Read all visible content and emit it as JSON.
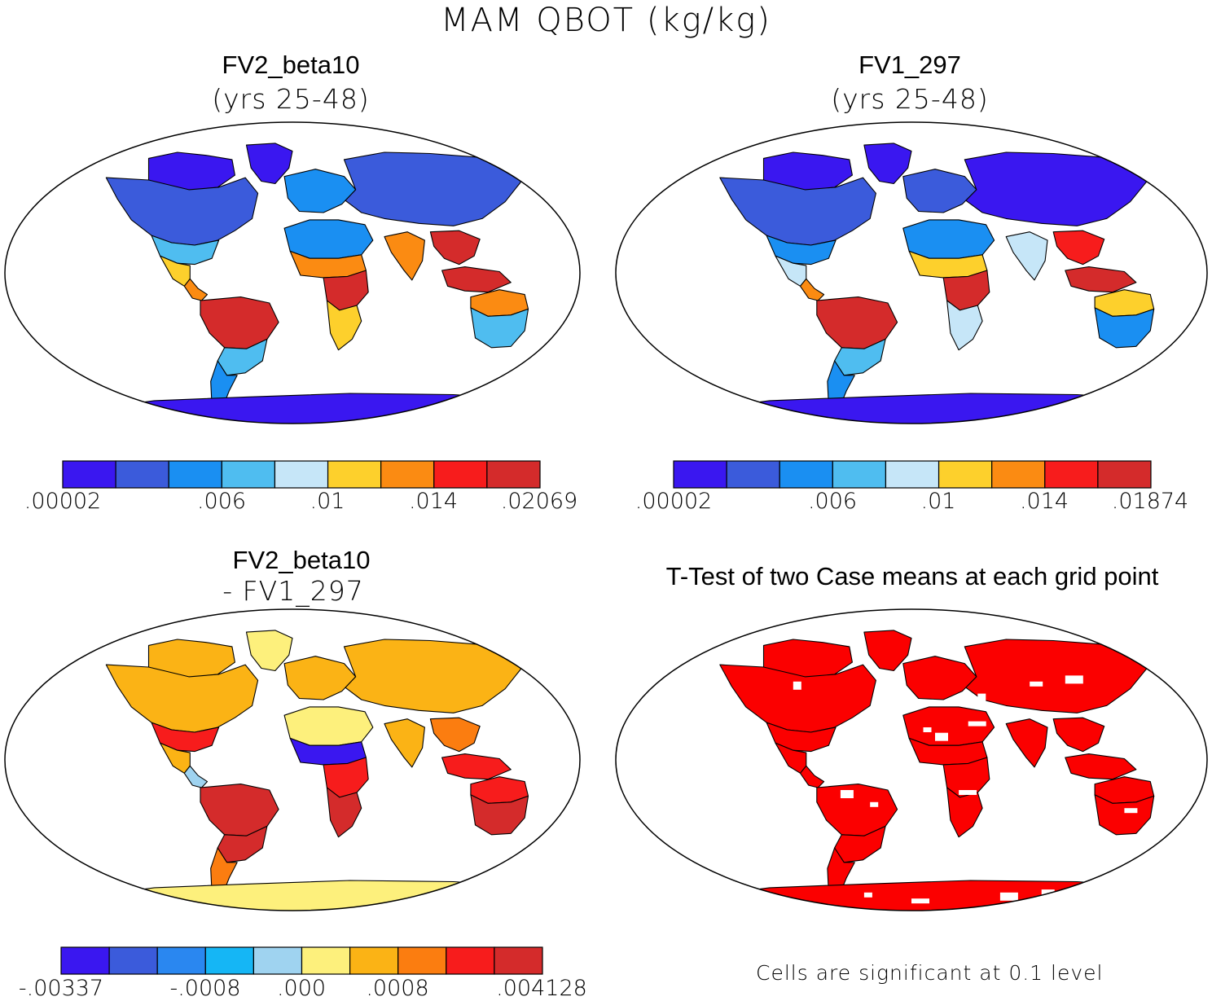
{
  "figure": {
    "title": "MAM QBOT (kg/kg)"
  },
  "chart_data": [
    {
      "type": "heatmap",
      "title": "FV2_beta10",
      "subtitle": "(yrs 25-48)",
      "projection": "robinson",
      "colorbar": {
        "colors": [
          "#3a17f0",
          "#3b5bdb",
          "#1a8ff2",
          "#4fbdf0",
          "#c6e6f8",
          "#fdd02c",
          "#fb8b12",
          "#f71c1c",
          "#d42b2b"
        ],
        "tick_labels": [
          ".00002",
          ".006",
          ".01",
          ".014",
          ".02069"
        ],
        "tick_boundary_index": [
          0,
          3,
          5,
          7,
          9
        ]
      },
      "regions": [
        {
          "name": "Arctic Canada",
          "level": 0
        },
        {
          "name": "North America",
          "level": 1
        },
        {
          "name": "Southern US",
          "level": 3
        },
        {
          "name": "Mexico",
          "level": 5
        },
        {
          "name": "Central America",
          "level": 6
        },
        {
          "name": "Amazon",
          "level": 8
        },
        {
          "name": "Southern South America",
          "level": 3
        },
        {
          "name": "Patagonia",
          "level": 2
        },
        {
          "name": "Greenland",
          "level": 0
        },
        {
          "name": "Europe",
          "level": 2
        },
        {
          "name": "Siberia",
          "level": 1
        },
        {
          "name": "Sahara",
          "level": 2
        },
        {
          "name": "Sahel",
          "level": 6
        },
        {
          "name": "Central Africa",
          "level": 8
        },
        {
          "name": "Southern Africa",
          "level": 5
        },
        {
          "name": "India",
          "level": 6
        },
        {
          "name": "Southeast Asia",
          "level": 8
        },
        {
          "name": "Maritime Continent",
          "level": 8
        },
        {
          "name": "Interior Australia",
          "level": 3
        },
        {
          "name": "North Australia",
          "level": 6
        },
        {
          "name": "Antarctica",
          "level": 0
        }
      ]
    },
    {
      "type": "heatmap",
      "title": "FV1_297",
      "subtitle": "(yrs 25-48)",
      "projection": "robinson",
      "colorbar": {
        "colors": [
          "#3a17f0",
          "#3b5bdb",
          "#1a8ff2",
          "#4fbdf0",
          "#c6e6f8",
          "#fdd02c",
          "#fb8b12",
          "#f71c1c",
          "#d42b2b"
        ],
        "tick_labels": [
          ".00002",
          ".006",
          ".01",
          ".014",
          ".01874"
        ],
        "tick_boundary_index": [
          0,
          3,
          5,
          7,
          9
        ]
      },
      "regions": [
        {
          "name": "Arctic Canada",
          "level": 0
        },
        {
          "name": "North America",
          "level": 1
        },
        {
          "name": "Southern US",
          "level": 2
        },
        {
          "name": "Mexico",
          "level": 4
        },
        {
          "name": "Central America",
          "level": 6
        },
        {
          "name": "Amazon",
          "level": 8
        },
        {
          "name": "Southern South America",
          "level": 3
        },
        {
          "name": "Patagonia",
          "level": 2
        },
        {
          "name": "Greenland",
          "level": 0
        },
        {
          "name": "Europe",
          "level": 1
        },
        {
          "name": "Siberia",
          "level": 0
        },
        {
          "name": "Sahara",
          "level": 2
        },
        {
          "name": "Sahel",
          "level": 5
        },
        {
          "name": "Central Africa",
          "level": 8
        },
        {
          "name": "Southern Africa",
          "level": 4
        },
        {
          "name": "India",
          "level": 4
        },
        {
          "name": "Southeast Asia",
          "level": 7
        },
        {
          "name": "Maritime Continent",
          "level": 8
        },
        {
          "name": "Interior Australia",
          "level": 2
        },
        {
          "name": "North Australia",
          "level": 5
        },
        {
          "name": "Antarctica",
          "level": 0
        }
      ]
    },
    {
      "type": "heatmap",
      "title": "FV2_beta10",
      "subtitle": "- FV1_297",
      "projection": "robinson",
      "colorbar": {
        "colors": [
          "#3a17f0",
          "#3b5bdb",
          "#2a87f0",
          "#15b6f5",
          "#9fd3f0",
          "#fdf07c",
          "#fbb315",
          "#fb7d10",
          "#f71c1c",
          "#d42b2b"
        ],
        "tick_labels": [
          "-.00337",
          "-.0008",
          ".000",
          ".0008",
          ".004128"
        ],
        "tick_boundary_index": [
          0,
          3,
          5,
          7,
          10
        ]
      },
      "regions": [
        {
          "name": "Arctic Canada",
          "level": 6
        },
        {
          "name": "North America",
          "level": 6
        },
        {
          "name": "Southern US",
          "level": 8
        },
        {
          "name": "Mexico",
          "level": 6
        },
        {
          "name": "Central America",
          "level": 4
        },
        {
          "name": "Amazon",
          "level": 9
        },
        {
          "name": "Southern South America",
          "level": 9
        },
        {
          "name": "Patagonia",
          "level": 7
        },
        {
          "name": "Greenland",
          "level": 5
        },
        {
          "name": "Europe",
          "level": 6
        },
        {
          "name": "Siberia",
          "level": 6
        },
        {
          "name": "Sahara",
          "level": 5
        },
        {
          "name": "Sahel",
          "level": 0
        },
        {
          "name": "Central Africa",
          "level": 8
        },
        {
          "name": "Southern Africa",
          "level": 9
        },
        {
          "name": "India",
          "level": 6
        },
        {
          "name": "Southeast Asia",
          "level": 7
        },
        {
          "name": "Maritime Continent",
          "level": 8
        },
        {
          "name": "Interior Australia",
          "level": 9
        },
        {
          "name": "North Australia",
          "level": 8
        },
        {
          "name": "Antarctica",
          "level": 5
        }
      ]
    },
    {
      "type": "heatmap",
      "title": "T-Test of two Case means at each grid point",
      "projection": "robinson",
      "significance_color": "#fb0000",
      "footnote": "Cells are significant at 0.1 level"
    }
  ]
}
